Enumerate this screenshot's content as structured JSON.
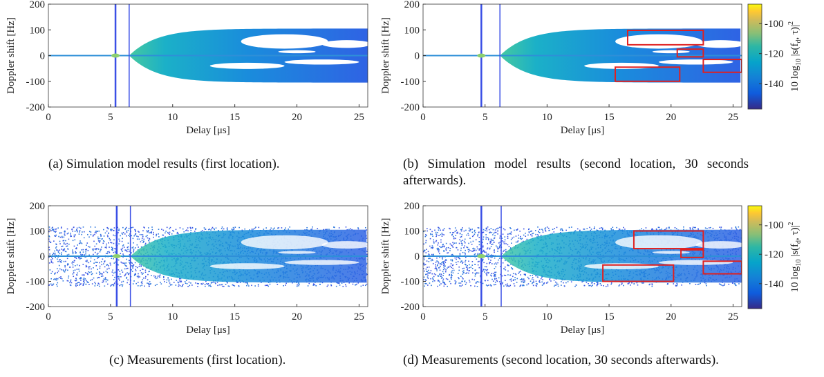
{
  "chart_data": [
    {
      "type": "heatmap",
      "caption": "(a) Simulation model results (first location).",
      "x_label": "Delay [μs]",
      "y_label": "Doppler shift [Hz]",
      "xlim": [
        0,
        25.7
      ],
      "ylim": [
        -200,
        200
      ],
      "xticks": [
        0,
        5,
        10,
        15,
        20,
        25
      ],
      "yticks": [
        -200,
        -100,
        0,
        100,
        200
      ]
    },
    {
      "type": "heatmap",
      "caption": "(b) Simulation model results (second location, 30 seconds afterwards).",
      "x_label": "Delay [μs]",
      "y_label": "Doppler shift [Hz]",
      "xlim": [
        0,
        25.7
      ],
      "ylim": [
        -200,
        200
      ],
      "xticks": [
        0,
        5,
        10,
        15,
        20,
        25
      ],
      "yticks": [
        -200,
        -100,
        0,
        100,
        200
      ],
      "colorbar": {
        "label_parts": [
          "10 log",
          "10",
          " |s(f",
          "d",
          ", τ)|",
          "2"
        ],
        "lim": [
          -157,
          -87
        ],
        "ticks": [
          -100,
          -120,
          -140
        ]
      }
    },
    {
      "type": "heatmap",
      "caption": "(c) Measurements (first location).",
      "x_label": "Delay [μs]",
      "y_label": "Doppler shift [Hz]",
      "xlim": [
        0,
        25.7
      ],
      "ylim": [
        -200,
        200
      ],
      "xticks": [
        0,
        5,
        10,
        15,
        20,
        25
      ],
      "yticks": [
        -200,
        -100,
        0,
        100,
        200
      ]
    },
    {
      "type": "heatmap",
      "caption": "(d) Measurements (second location, 30 seconds afterwards).",
      "x_label": "Delay [μs]",
      "y_label": "Doppler shift [Hz]",
      "xlim": [
        0,
        25.7
      ],
      "ylim": [
        -200,
        200
      ],
      "xticks": [
        0,
        5,
        10,
        15,
        20,
        25
      ],
      "yticks": [
        -200,
        -100,
        0,
        100,
        200
      ],
      "colorbar": {
        "label_parts": [
          "10 log",
          "10",
          " |s(f",
          "d",
          ", τ)|",
          "2"
        ],
        "lim": [
          -157,
          -87
        ],
        "ticks": [
          -100,
          -120,
          -140
        ]
      }
    }
  ]
}
